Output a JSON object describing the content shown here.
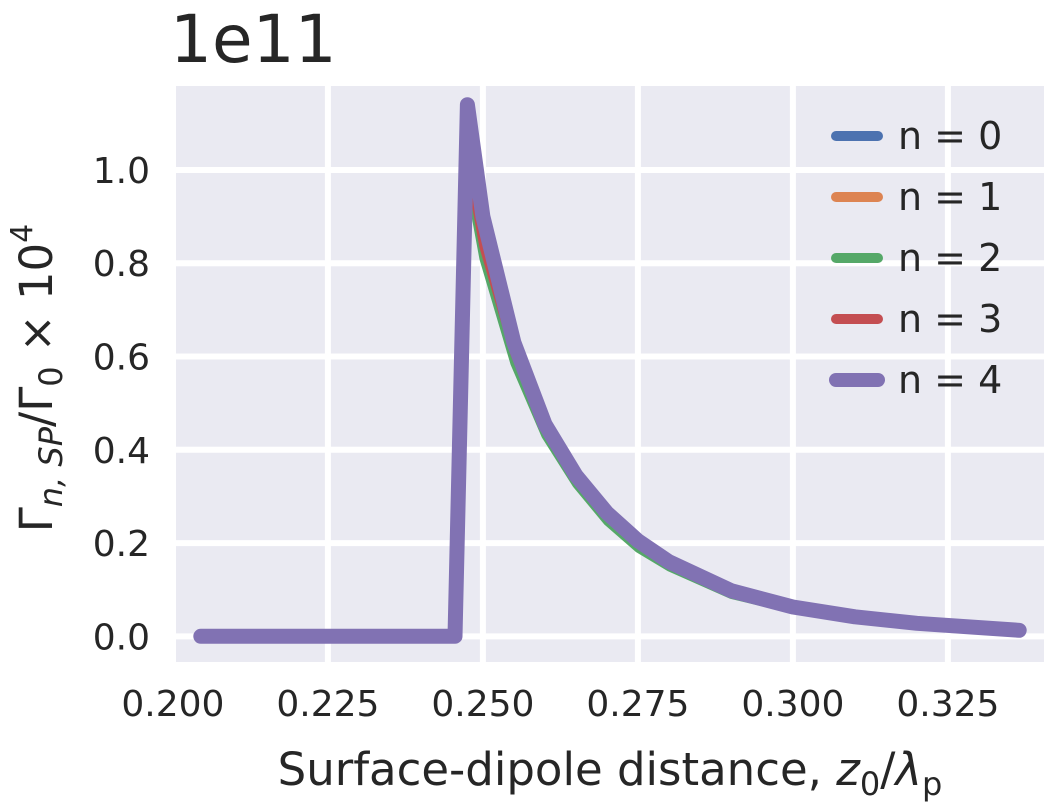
{
  "chart_data": {
    "type": "line",
    "title": "",
    "offset_text": "1e11",
    "xlabel": {
      "main": "Surface-dipole distance, ",
      "z": "z",
      "z_sub": "0",
      "slash": "/",
      "lambda": "λ",
      "lambda_sub": "p"
    },
    "ylabel": {
      "gamma1": "Γ",
      "sub1": "n, SP",
      "slash": "/Γ",
      "sub2": "0",
      "times": " × 10",
      "sup": "4"
    },
    "xlim": [
      0.2005,
      0.3405
    ],
    "ylim": [
      -0.055,
      1.18
    ],
    "x_ticks": [
      "0.200",
      "0.225",
      "0.250",
      "0.275",
      "0.300",
      "0.325"
    ],
    "x_tick_values": [
      0.2,
      0.225,
      0.25,
      0.275,
      0.3,
      0.325
    ],
    "y_ticks": [
      "0.0",
      "0.2",
      "0.4",
      "0.6",
      "0.8",
      "1.0"
    ],
    "y_tick_values": [
      0.0,
      0.2,
      0.4,
      0.6,
      0.8,
      1.0
    ],
    "grid": true,
    "background": "#eaeaf2",
    "legend_position": "top-right",
    "series": [
      {
        "name": "n = 0",
        "color": "#4c72b0",
        "x": [
          0.2045,
          0.2455,
          0.2475,
          0.25,
          0.255,
          0.26,
          0.265,
          0.27,
          0.275,
          0.28,
          0.29,
          0.3,
          0.31,
          0.32,
          0.3365
        ],
        "y": [
          0.0,
          0.0,
          1.0,
          0.82,
          0.59,
          0.435,
          0.33,
          0.25,
          0.19,
          0.15,
          0.09,
          0.058,
          0.037,
          0.025,
          0.012
        ]
      },
      {
        "name": "n = 1",
        "color": "#dd8452",
        "x": [
          0.2045,
          0.2455,
          0.2475,
          0.25,
          0.255,
          0.26,
          0.265,
          0.27,
          0.275,
          0.28,
          0.29,
          0.3,
          0.31,
          0.32,
          0.3365
        ],
        "y": [
          0.0,
          0.0,
          1.01,
          0.83,
          0.6,
          0.44,
          0.335,
          0.255,
          0.195,
          0.152,
          0.092,
          0.059,
          0.038,
          0.026,
          0.012
        ]
      },
      {
        "name": "n = 2",
        "color": "#55a868",
        "x": [
          0.2045,
          0.2455,
          0.2475,
          0.25,
          0.255,
          0.26,
          0.265,
          0.27,
          0.275,
          0.28,
          0.29,
          0.3,
          0.31,
          0.32,
          0.3365
        ],
        "y": [
          0.0,
          0.0,
          0.99,
          0.81,
          0.585,
          0.43,
          0.325,
          0.245,
          0.187,
          0.147,
          0.088,
          0.056,
          0.036,
          0.024,
          0.011
        ]
      },
      {
        "name": "n = 3",
        "color": "#c44e52",
        "x": [
          0.2045,
          0.2455,
          0.2475,
          0.25,
          0.255,
          0.26,
          0.265,
          0.27,
          0.275,
          0.28,
          0.29,
          0.3,
          0.31,
          0.32,
          0.3365
        ],
        "y": [
          0.0,
          0.0,
          1.02,
          0.835,
          0.605,
          0.445,
          0.338,
          0.258,
          0.197,
          0.154,
          0.093,
          0.06,
          0.039,
          0.026,
          0.012
        ]
      },
      {
        "name": "n = 4",
        "color": "#8172b3",
        "x": [
          0.2045,
          0.2455,
          0.2475,
          0.25,
          0.255,
          0.26,
          0.265,
          0.27,
          0.275,
          0.28,
          0.29,
          0.3,
          0.31,
          0.32,
          0.3365
        ],
        "y": [
          0.0,
          0.0,
          1.14,
          0.9,
          0.63,
          0.455,
          0.345,
          0.265,
          0.205,
          0.16,
          0.098,
          0.063,
          0.042,
          0.028,
          0.013
        ]
      }
    ]
  }
}
